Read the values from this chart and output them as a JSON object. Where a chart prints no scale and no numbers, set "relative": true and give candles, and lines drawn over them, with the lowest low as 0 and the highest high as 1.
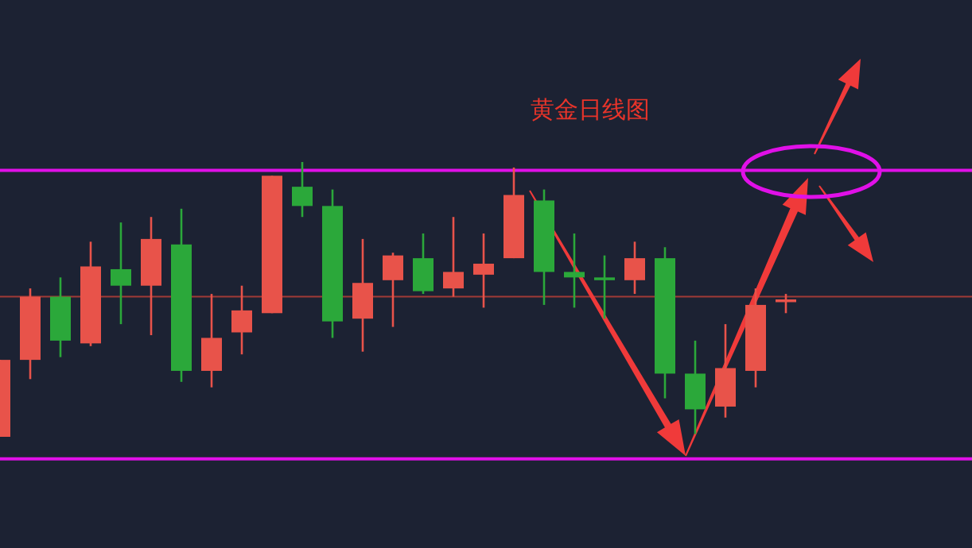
{
  "chart_data": {
    "type": "candlestick",
    "title": "黄金日线图",
    "relative": true,
    "categories": [
      null,
      null,
      null,
      null,
      null,
      null,
      null,
      null,
      null,
      null,
      null,
      null,
      null,
      null,
      null,
      null,
      null,
      null,
      null,
      null,
      null,
      null,
      null,
      null,
      null,
      null,
      null
    ],
    "ohlc": [
      [
        0,
        0.28,
        0,
        0.28
      ],
      [
        0.28,
        0.54,
        0.21,
        0.51
      ],
      [
        0.51,
        0.58,
        0.29,
        0.35
      ],
      [
        0.34,
        0.71,
        0.33,
        0.62
      ],
      [
        0.61,
        0.78,
        0.41,
        0.55
      ],
      [
        0.55,
        0.8,
        0.37,
        0.72
      ],
      [
        0.7,
        0.83,
        0.2,
        0.24
      ],
      [
        0.24,
        0.52,
        0.18,
        0.36
      ],
      [
        0.38,
        0.55,
        0.3,
        0.46
      ],
      [
        0.45,
        0.95,
        0.45,
        0.95
      ],
      [
        0.91,
        1,
        0.8,
        0.84
      ],
      [
        0.84,
        0.9,
        0.36,
        0.42
      ],
      [
        0.43,
        0.72,
        0.31,
        0.56
      ],
      [
        0.57,
        0.67,
        0.4,
        0.66
      ],
      [
        0.65,
        0.74,
        0.52,
        0.53
      ],
      [
        0.54,
        0.8,
        0.51,
        0.6
      ],
      [
        0.59,
        0.74,
        0.47,
        0.63
      ],
      [
        0.65,
        0.98,
        0.65,
        0.88
      ],
      [
        0.86,
        0.9,
        0.48,
        0.6
      ],
      [
        0.6,
        0.74,
        0.47,
        0.58
      ],
      [
        0.58,
        0.66,
        0.43,
        0.57
      ],
      [
        0.57,
        0.71,
        0.52,
        0.65
      ],
      [
        0.65,
        0.69,
        0.14,
        0.23
      ],
      [
        0.23,
        0.35,
        0.01,
        0.1
      ],
      [
        0.11,
        0.41,
        0.07,
        0.25
      ],
      [
        0.24,
        0.54,
        0.18,
        0.48
      ],
      [
        0.49,
        0.52,
        0.45,
        0.5
      ]
    ],
    "colors": [
      "#e8534a",
      "#e8534a",
      "#2ba83a",
      "#e8534a",
      "#2ba83a",
      "#e8534a",
      "#2ba83a",
      "#e8534a",
      "#e8534a",
      "#e8534a",
      "#2ba83a",
      "#2ba83a",
      "#e8534a",
      "#e8534a",
      "#2ba83a",
      "#e8534a",
      "#e8534a",
      "#e8534a",
      "#2ba83a",
      "#2ba83a",
      "#2ba83a",
      "#e8534a",
      "#2ba83a",
      "#2ba83a",
      "#e8534a",
      "#e8534a",
      "#e8534a"
    ],
    "ref_lines": [
      {
        "axis": "y",
        "value": 0.97,
        "color": "#e010e8"
      },
      {
        "axis": "y",
        "value": -0.08,
        "color": "#e010e8"
      },
      {
        "axis": "y",
        "value": 0.51,
        "color": "#a03a36"
      }
    ]
  }
}
